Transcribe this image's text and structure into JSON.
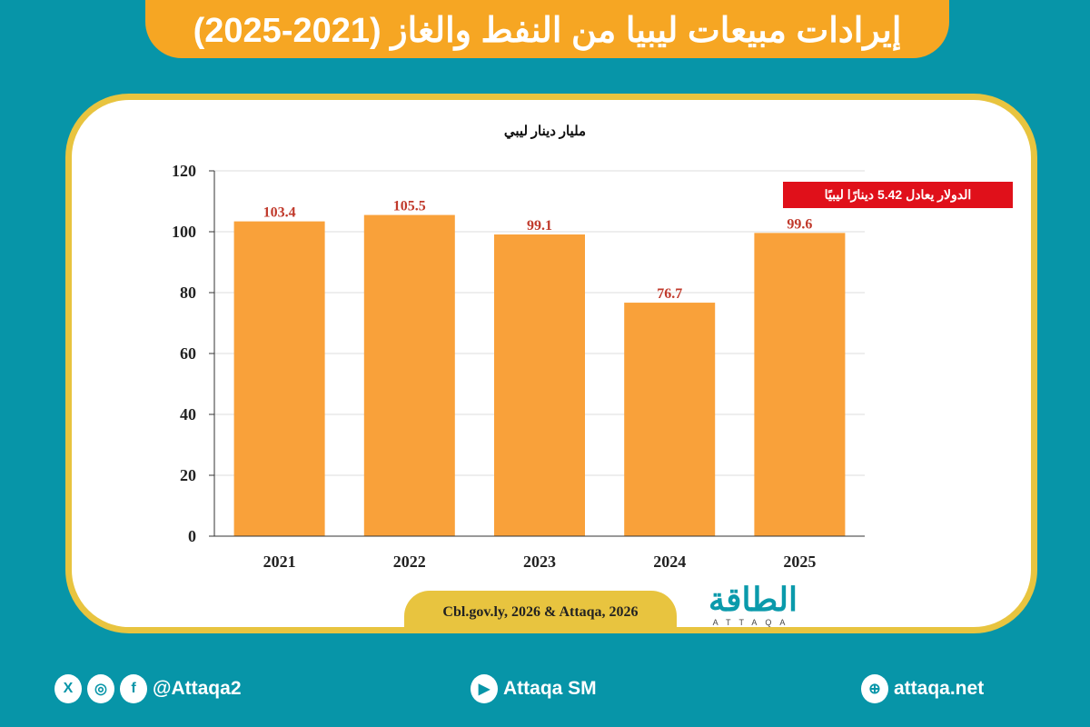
{
  "header": {
    "title": "إيرادات مبيعات ليبيا من النفط والغاز (2021-2025)"
  },
  "chart_data": {
    "type": "bar",
    "title": "إيرادات مبيعات ليبيا من النفط والغاز (2021-2025)",
    "ylabel": "مليار دينار ليبي",
    "categories": [
      "2021",
      "2022",
      "2023",
      "2024",
      "2025"
    ],
    "values": [
      103.4,
      105.5,
      99.1,
      76.7,
      99.6
    ],
    "data_labels": [
      "103.4",
      "105.5",
      "99.1",
      "76.7",
      "99.6"
    ],
    "ylim": [
      0,
      120
    ],
    "yticks": [
      0,
      20,
      40,
      60,
      80,
      100,
      120
    ],
    "grid": true,
    "bar_color": "#f9a13a",
    "label_color": "#c0392b",
    "annotation": "الدولار يعادل 5.42 دينارًا ليبيًا"
  },
  "source": "Cbl.gov.ly, 2026 & Attaqa, 2026",
  "logo": {
    "ar": "الطاقة",
    "en": "ATTAQA"
  },
  "footer": {
    "social_handle": "@Attaqa2",
    "youtube": "Attaqa SM",
    "website": "attaqa.net"
  },
  "colors": {
    "background": "#0795a8",
    "header": "#f6a623",
    "border": "#e8c43f"
  }
}
